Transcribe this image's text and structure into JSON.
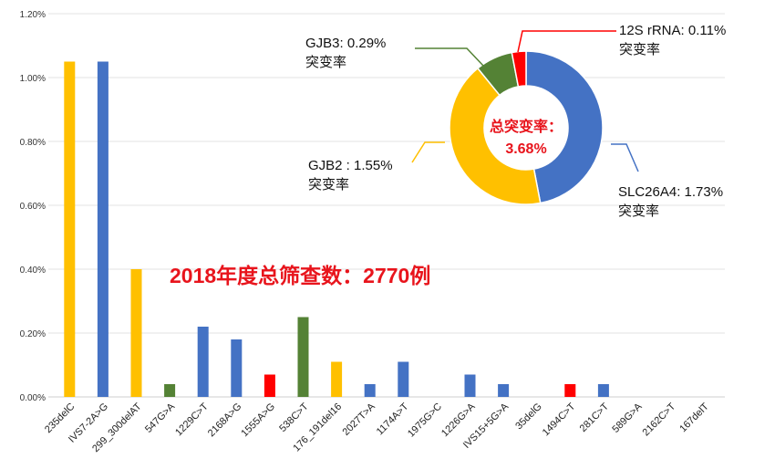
{
  "chart_data": [
    {
      "type": "bar",
      "categories": [
        "235delC",
        "IVS7-2A>G",
        "299_300delAT",
        "547G>A",
        "1229C>T",
        "2168A>G",
        "1555A>G",
        "538C>T",
        "176_191del16",
        "2027T>A",
        "1174A>T",
        "1975G>C",
        "1226G>A",
        "IVS15+5G>A",
        "35delG",
        "1494C>T",
        "281C>T",
        "589G>A",
        "2162C>T",
        "167delT"
      ],
      "values": [
        1.05,
        1.05,
        0.4,
        0.04,
        0.22,
        0.18,
        0.07,
        0.25,
        0.11,
        0.04,
        0.11,
        0,
        0.07,
        0.04,
        0,
        0.04,
        0.04,
        0,
        0,
        0
      ],
      "bar_colors": [
        "#FFC000",
        "#4472C4",
        "#FFC000",
        "#548235",
        "#4472C4",
        "#4472C4",
        "#FF0000",
        "#548235",
        "#FFC000",
        "#4472C4",
        "#4472C4",
        "#4472C4",
        "#4472C4",
        "#4472C4",
        "#4472C4",
        "#FF0000",
        "#4472C4",
        "#4472C4",
        "#4472C4",
        "#4472C4"
      ],
      "unit": "%",
      "ylim": [
        0,
        1.2
      ],
      "yticks": [
        "0.00%",
        "0.20%",
        "0.40%",
        "0.60%",
        "0.80%",
        "1.00%",
        "1.20%"
      ],
      "grid": true,
      "annotation": "2018年度总筛查数：2770例"
    },
    {
      "type": "pie",
      "donut": true,
      "slices": [
        {
          "name": "SLC26A4",
          "value": 1.73,
          "label": "SLC26A4: 1.73%",
          "sublabel": "突变率",
          "color": "#4472C4"
        },
        {
          "name": "GJB2",
          "value": 1.55,
          "label": "GJB2 : 1.55%",
          "sublabel": "突变率",
          "color": "#FFC000"
        },
        {
          "name": "GJB3",
          "value": 0.29,
          "label": "GJB3: 0.29%",
          "sublabel": "突变率",
          "color": "#548235"
        },
        {
          "name": "12S rRNA",
          "value": 0.11,
          "label": "12S rRNA: 0.11%",
          "sublabel": "突变率",
          "color": "#FF0000"
        }
      ],
      "center_label": [
        "总突变率：",
        "3.68%"
      ]
    }
  ]
}
